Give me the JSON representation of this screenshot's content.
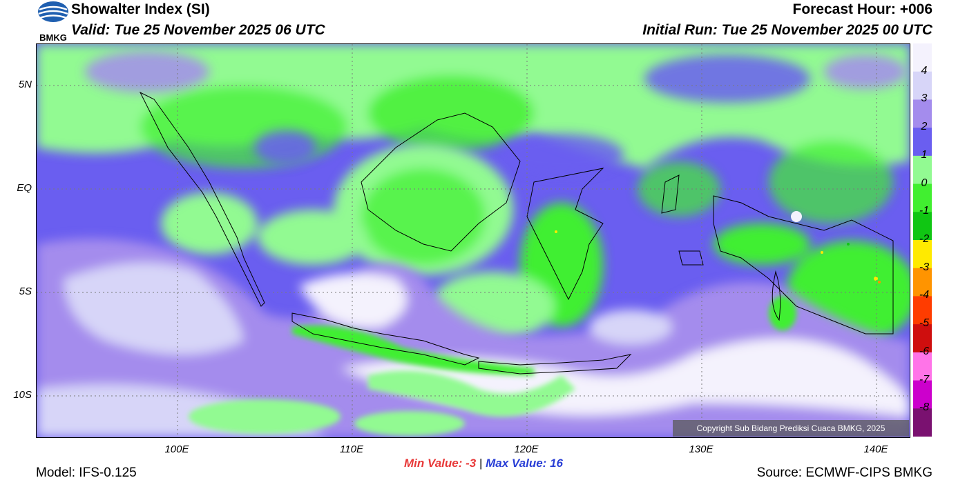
{
  "header": {
    "logo_text": "BMKG",
    "title": "Showalter Index (SI)",
    "valid": "Valid: Tue 25 November 2025 06 UTC",
    "forecast_hour": "Forecast Hour: +006",
    "initial_run": "Initial Run: Tue 25 November 2025 00 UTC"
  },
  "map": {
    "lat_labels": [
      "5N",
      "EQ",
      "5S",
      "10S"
    ],
    "lon_labels": [
      "100E",
      "110E",
      "120E",
      "130E",
      "140E"
    ],
    "copyright": "Copyright Sub Bidang Prediksi Cuaca BMKG, 2025"
  },
  "colorbar": {
    "labels": [
      "4",
      "3",
      "2",
      "1",
      "0",
      "-1",
      "-2",
      "-3",
      "-4",
      "-5",
      "-6",
      "-7",
      "-8"
    ],
    "colors": [
      "#f4f2fd",
      "#d7d5f8",
      "#a48ced",
      "#6a5ef0",
      "#92fa92",
      "#41ef30",
      "#10c613",
      "#ffea00",
      "#ff9400",
      "#ff3c00",
      "#cf0e0e",
      "#ff74e8",
      "#cc00cc",
      "#7a1170"
    ]
  },
  "stats": {
    "min_label": "Min Value:",
    "min_value": "-3",
    "separator": "|",
    "max_label": "Max Value:",
    "max_value": "16"
  },
  "footer": {
    "model": "Model: IFS-0.125",
    "source": "Source: ECMWF-CIPS BMKG"
  }
}
